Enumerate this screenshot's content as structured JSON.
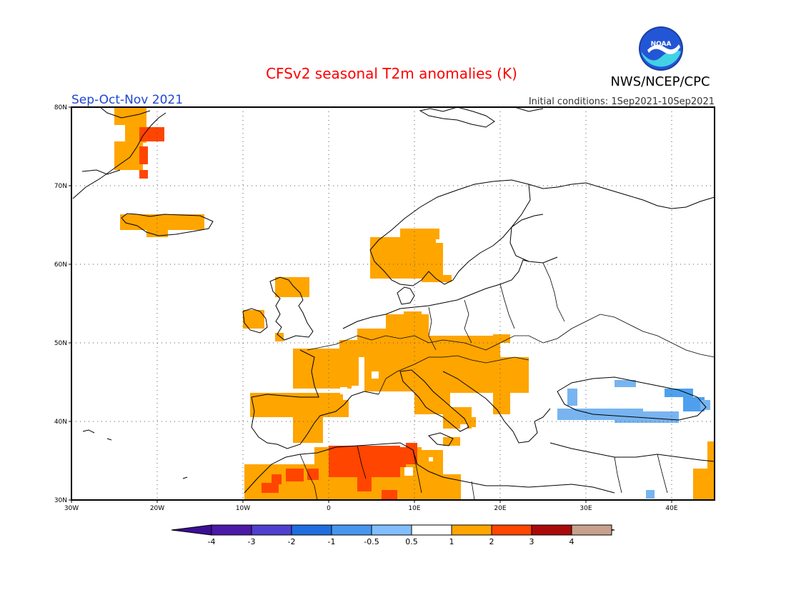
{
  "header": {
    "title": "CFSv2 seasonal T2m anomalies (K)",
    "agency": "NWS/NCEP/CPC",
    "logo_text": "NOAA",
    "season": "Sep-Oct-Nov 2021",
    "initial_conditions": "Initial conditions: 1Sep2021-10Sep2021"
  },
  "map": {
    "lon_range": [
      -30,
      45
    ],
    "lat_range": [
      30,
      80
    ],
    "lat_ticks": [
      "30N",
      "40N",
      "50N",
      "60N",
      "70N",
      "80N"
    ],
    "lon_ticks": [
      "30W",
      "20W",
      "10W",
      "0",
      "10E",
      "20E",
      "30E",
      "40E"
    ],
    "colors": {
      "orange": "#ffa500",
      "red_orange": "#ff4500",
      "dark_red": "#c81010",
      "light_blue": "#78b4f0",
      "mid_blue": "#4ea0ee",
      "coast": "#000000"
    }
  },
  "colorbar": {
    "labels": [
      "-4",
      "-3",
      "-2",
      "-1",
      "-0.5",
      "0.5",
      "1",
      "2",
      "3",
      "4"
    ],
    "colors": [
      "#4b1aa8",
      "#5040d0",
      "#1e6ee0",
      "#4696f0",
      "#82beff",
      "#ffffff",
      "#ffa500",
      "#ff4500",
      "#aa0a0a",
      "#c8a08c"
    ],
    "low_end_color": "#3c0f96",
    "high_end_color": "#825a4a"
  }
}
